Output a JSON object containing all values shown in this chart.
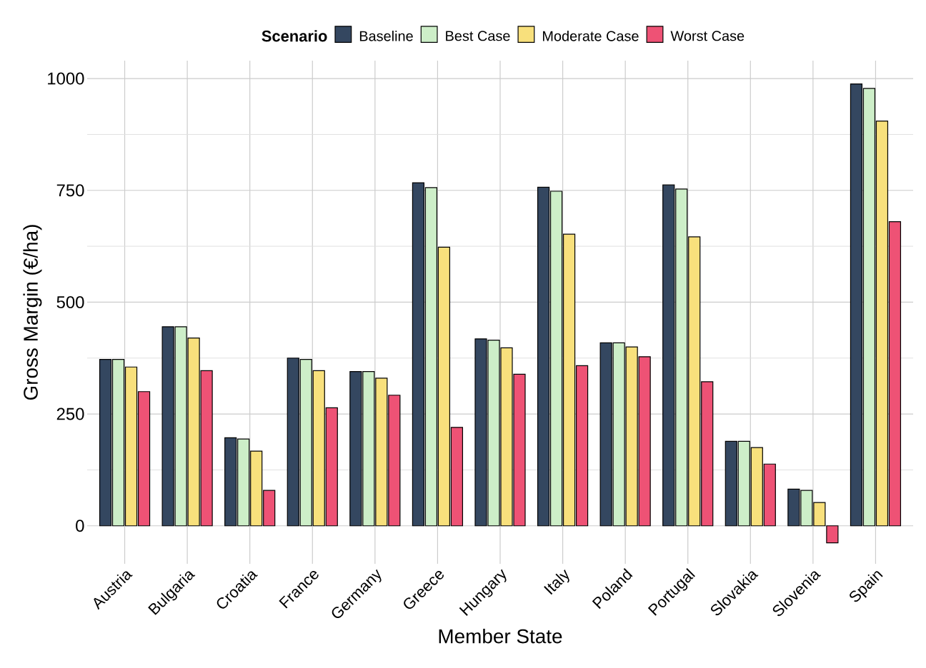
{
  "chart_data": {
    "type": "bar",
    "xlabel": "Member State",
    "ylabel": "Gross Margin (€/ha)",
    "legend_title": "Scenario",
    "legend": "top",
    "grid": true,
    "categories": [
      "Austria",
      "Bulgaria",
      "Croatia",
      "France",
      "Germany",
      "Greece",
      "Hungary",
      "Italy",
      "Poland",
      "Portugal",
      "Slovakia",
      "Slovenia",
      "Spain"
    ],
    "ylim": [
      -85,
      1040
    ],
    "yticks": [
      0,
      250,
      500,
      750,
      1000
    ],
    "series": [
      {
        "name": "Baseline",
        "color": "#344760",
        "values": [
          372,
          445,
          197,
          375,
          345,
          767,
          418,
          757,
          409,
          762,
          189,
          82,
          988
        ]
      },
      {
        "name": "Best Case",
        "color": "#cdeec8",
        "values": [
          372,
          445,
          194,
          372,
          345,
          756,
          415,
          748,
          409,
          753,
          189,
          79,
          978
        ]
      },
      {
        "name": "Moderate Case",
        "color": "#f8e07c",
        "values": [
          355,
          420,
          167,
          347,
          330,
          623,
          398,
          652,
          400,
          646,
          175,
          52,
          905
        ]
      },
      {
        "name": "Worst Case",
        "color": "#ee5275",
        "values": [
          300,
          347,
          79,
          264,
          292,
          220,
          339,
          358,
          378,
          322,
          138,
          -38,
          680
        ]
      }
    ]
  }
}
